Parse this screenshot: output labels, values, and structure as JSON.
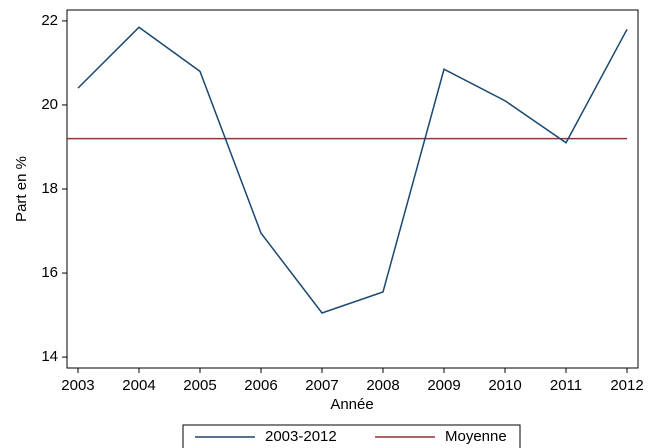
{
  "chart_data": {
    "type": "line",
    "x_label": "Année",
    "y_label": "Part en %",
    "x": [
      2003,
      2004,
      2005,
      2006,
      2007,
      2008,
      2009,
      2010,
      2011,
      2012
    ],
    "series": [
      {
        "name": "2003-2012",
        "color": "#1a476f",
        "values": [
          20.4,
          21.85,
          20.8,
          16.95,
          15.05,
          15.55,
          20.85,
          20.1,
          19.1,
          21.8
        ]
      }
    ],
    "hline": {
      "name": "Moyenne",
      "color": "#90353b",
      "value": 19.2
    },
    "xlim": [
      2002.82,
      2012.18
    ],
    "ylim": [
      13.74,
      22.26
    ],
    "xticks": [
      2003,
      2004,
      2005,
      2006,
      2007,
      2008,
      2009,
      2010,
      2011,
      2012
    ],
    "yticks": [
      14,
      16,
      18,
      20,
      22
    ]
  }
}
